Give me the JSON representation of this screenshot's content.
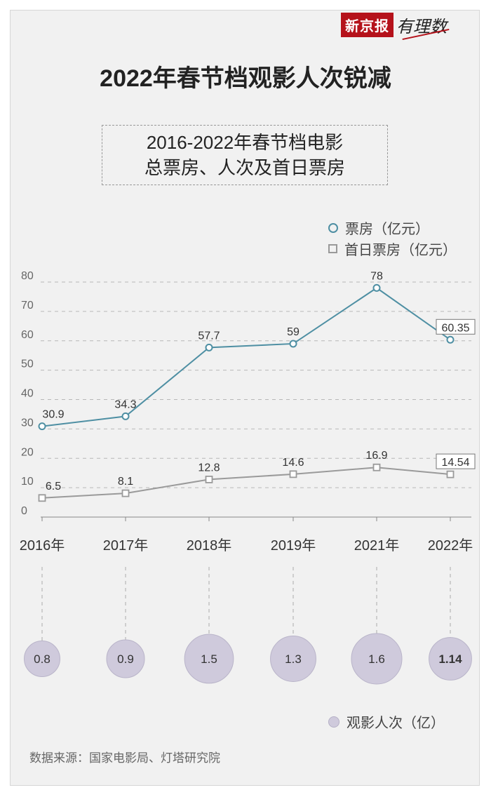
{
  "header": {
    "logo_text": "新京报",
    "logo_script": "有理数",
    "title": "2022年春节档观影人次锐减",
    "subtitle_line1": "2016-2022年春节档电影",
    "subtitle_line2": "总票房、人次及首日票房"
  },
  "legend": {
    "box_office": "票房（亿元）",
    "first_day": "首日票房（亿元）",
    "admissions": "观影人次（亿）"
  },
  "source": "数据来源：国家电影局、灯塔研究院",
  "colors": {
    "box_office": "#4e8fa3",
    "first_day": "#9a9a9a",
    "bubble": "#cfcadc"
  },
  "chart_data": {
    "type": "line",
    "categories": [
      "2016年",
      "2017年",
      "2018年",
      "2019年",
      "2021年",
      "2022年"
    ],
    "ylim": [
      0,
      80
    ],
    "yticks": [
      0,
      10,
      20,
      30,
      40,
      50,
      60,
      70,
      80
    ],
    "series": [
      {
        "name": "票房（亿元）",
        "marker": "circle",
        "values": [
          30.9,
          34.3,
          57.7,
          59,
          78,
          60.35
        ],
        "labels": [
          "30.9",
          "34.3",
          "57.7",
          "59",
          "78",
          "60.35"
        ],
        "boxed_last": true
      },
      {
        "name": "首日票房（亿元）",
        "marker": "square",
        "values": [
          6.5,
          8.1,
          12.8,
          14.6,
          16.9,
          14.54
        ],
        "labels": [
          "6.5",
          "8.1",
          "12.8",
          "14.6",
          "16.9",
          "14.54"
        ],
        "boxed_last": true
      }
    ],
    "bubbles": {
      "name": "观影人次（亿）",
      "values": [
        0.8,
        0.9,
        1.5,
        1.3,
        1.6,
        1.14
      ],
      "labels": [
        "0.8",
        "0.9",
        "1.5",
        "1.3",
        "1.6",
        "1.14"
      ],
      "bold_last": true
    }
  }
}
